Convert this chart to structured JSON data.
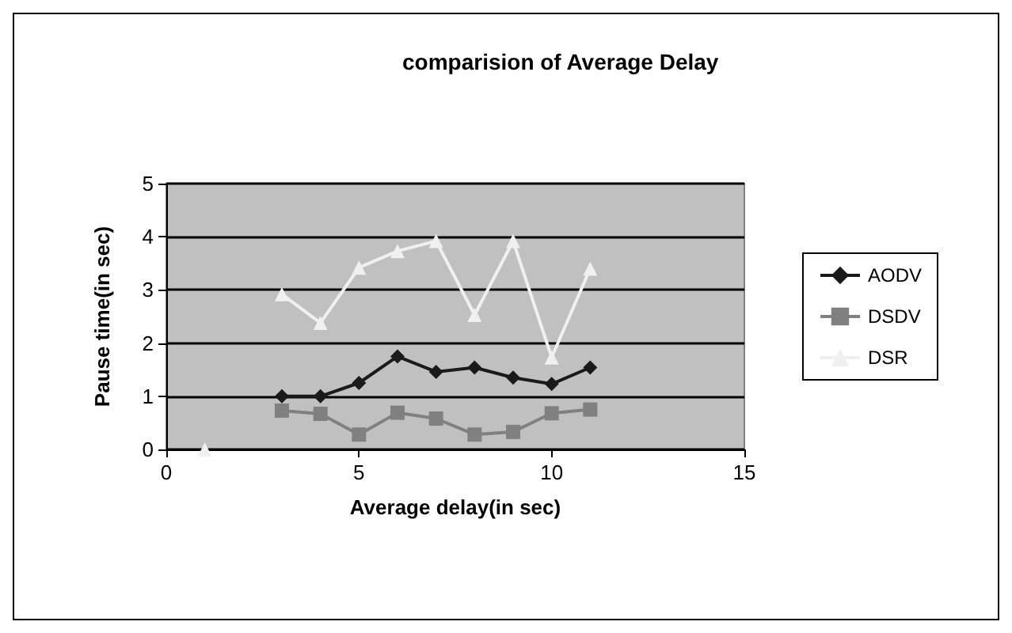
{
  "chart_data": {
    "type": "line",
    "title": "comparision of Average Delay",
    "xlabel": "Average delay(in sec)",
    "ylabel": "Pause time(in sec)",
    "x": [
      1,
      2,
      3,
      4,
      5,
      6,
      7,
      8,
      9,
      10,
      11
    ],
    "series": [
      {
        "name": "AODV",
        "color": "#1a1a1a",
        "marker": "diamond",
        "values": [
          null,
          null,
          1.0,
          1.0,
          1.25,
          1.75,
          1.46,
          1.54,
          1.35,
          1.23,
          1.54
        ]
      },
      {
        "name": "DSDV",
        "color": "#808080",
        "marker": "square",
        "values": [
          null,
          null,
          0.73,
          0.67,
          0.28,
          0.69,
          0.58,
          0.28,
          0.33,
          0.68,
          0.75
        ]
      },
      {
        "name": "DSR",
        "color": "#f0f0f0",
        "marker": "triangle",
        "values": [
          0,
          null,
          2.92,
          2.38,
          3.42,
          3.73,
          3.92,
          2.53,
          3.92,
          1.73,
          3.4
        ]
      }
    ],
    "xlim": [
      0,
      15
    ],
    "xticks": [
      0,
      5,
      10,
      15
    ],
    "ylim": [
      0,
      5
    ],
    "yticks": [
      0,
      1,
      2,
      3,
      4,
      5
    ],
    "grid": "y",
    "legend": "right"
  }
}
